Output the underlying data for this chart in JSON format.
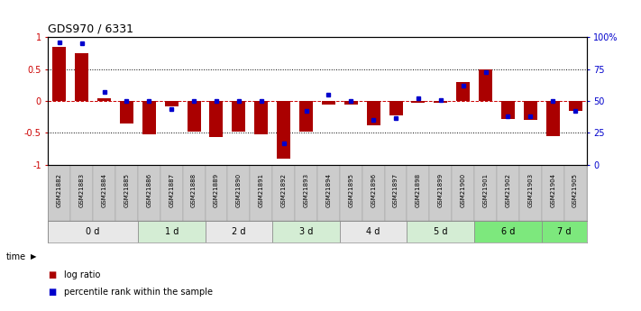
{
  "title": "GDS970 / 6331",
  "samples": [
    "GSM21882",
    "GSM21883",
    "GSM21884",
    "GSM21885",
    "GSM21886",
    "GSM21887",
    "GSM21888",
    "GSM21889",
    "GSM21890",
    "GSM21891",
    "GSM21892",
    "GSM21893",
    "GSM21894",
    "GSM21895",
    "GSM21896",
    "GSM21897",
    "GSM21898",
    "GSM21899",
    "GSM21900",
    "GSM21901",
    "GSM21902",
    "GSM21903",
    "GSM21904",
    "GSM21905"
  ],
  "log_ratio": [
    0.85,
    0.75,
    0.05,
    -0.35,
    -0.52,
    -0.08,
    -0.48,
    -0.57,
    -0.48,
    -0.52,
    -0.9,
    -0.48,
    -0.05,
    -0.05,
    -0.38,
    -0.22,
    -0.03,
    -0.03,
    0.3,
    0.5,
    -0.28,
    -0.3,
    -0.55,
    -0.15
  ],
  "percentile": [
    0.96,
    0.95,
    0.57,
    0.5,
    0.5,
    0.44,
    0.5,
    0.5,
    0.5,
    0.5,
    0.17,
    0.42,
    0.55,
    0.5,
    0.35,
    0.37,
    0.52,
    0.51,
    0.62,
    0.73,
    0.38,
    0.38,
    0.5,
    0.42
  ],
  "time_groups": [
    {
      "label": "0 d",
      "indices": [
        0,
        1,
        2,
        3
      ],
      "color": "#e8e8e8"
    },
    {
      "label": "1 d",
      "indices": [
        4,
        5,
        6
      ],
      "color": "#d4edd4"
    },
    {
      "label": "2 d",
      "indices": [
        7,
        8,
        9
      ],
      "color": "#e8e8e8"
    },
    {
      "label": "3 d",
      "indices": [
        10,
        11,
        12
      ],
      "color": "#d4edd4"
    },
    {
      "label": "4 d",
      "indices": [
        13,
        14,
        15
      ],
      "color": "#e8e8e8"
    },
    {
      "label": "5 d",
      "indices": [
        16,
        17,
        18
      ],
      "color": "#d4edd4"
    },
    {
      "label": "6 d",
      "indices": [
        19,
        20,
        21
      ],
      "color": "#7de87d"
    },
    {
      "label": "7 d",
      "indices": [
        22,
        23
      ],
      "color": "#7de87d"
    }
  ],
  "bar_color": "#aa0000",
  "dot_color": "#0000cc",
  "ylim": [
    -1,
    1
  ],
  "yticks": [
    -1,
    -0.5,
    0,
    0.5,
    1
  ],
  "ytick_labels_left": [
    "-1",
    "-0.5",
    "0",
    "0.5",
    "1"
  ],
  "ytick_labels_right": [
    "0",
    "25",
    "50",
    "75",
    "100%"
  ],
  "legend_items": [
    {
      "label": "log ratio",
      "color": "#aa0000"
    },
    {
      "label": "percentile rank within the sample",
      "color": "#0000cc"
    }
  ]
}
